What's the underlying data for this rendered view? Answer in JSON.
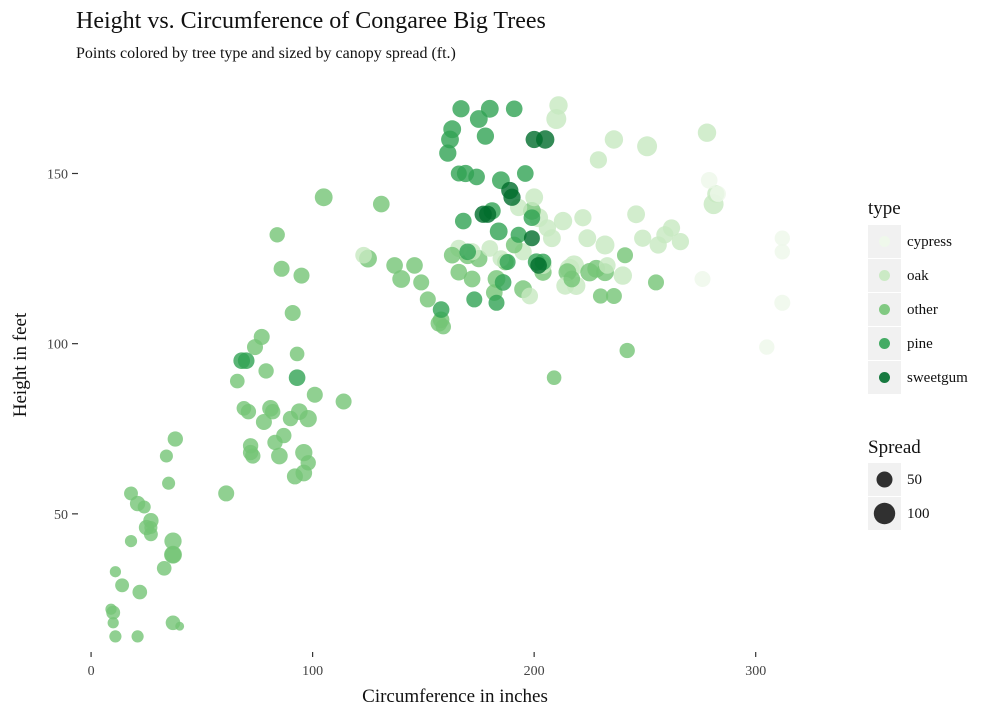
{
  "chart_data": {
    "type": "scatter",
    "title": "Height vs. Circumference of Congaree Big Trees",
    "subtitle": "Points colored by tree type and sized by canopy spread (ft.)",
    "xlabel": "Circumference in inches",
    "ylabel": "Height in feet",
    "xlim": [
      -5,
      320
    ],
    "ylim": [
      10,
      176
    ],
    "x_ticks": [
      0,
      100,
      200,
      300
    ],
    "y_ticks": [
      50,
      100,
      150
    ],
    "size_range_spread": [
      0,
      130
    ],
    "colors": {
      "cypress": "#eef8ea",
      "oak": "#c7e9c0",
      "other": "#74c476",
      "pine": "#31a354",
      "sweetgum": "#006d2c"
    },
    "legend_type": {
      "title": "type",
      "entries": [
        {
          "label": "cypress",
          "type": "cypress"
        },
        {
          "label": "oak",
          "type": "oak"
        },
        {
          "label": "other",
          "type": "other"
        },
        {
          "label": "pine",
          "type": "pine"
        },
        {
          "label": "sweetgum",
          "type": "sweetgum"
        }
      ]
    },
    "legend_size": {
      "title": "Spread",
      "entries": [
        {
          "label": "50",
          "value": 50
        },
        {
          "label": "100",
          "value": 100
        }
      ]
    },
    "series": [
      {
        "name": "other",
        "points": [
          [
            9,
            22,
            20
          ],
          [
            10,
            21,
            35
          ],
          [
            10,
            18,
            20
          ],
          [
            11,
            14,
            25
          ],
          [
            11,
            33,
            20
          ],
          [
            14,
            29,
            35
          ],
          [
            18,
            42,
            25
          ],
          [
            18,
            56,
            35
          ],
          [
            21,
            53,
            45
          ],
          [
            21,
            14,
            25
          ],
          [
            22,
            27,
            40
          ],
          [
            24,
            52,
            30
          ],
          [
            25,
            46,
            45
          ],
          [
            27,
            48,
            45
          ],
          [
            27,
            44,
            35
          ],
          [
            27,
            46,
            30
          ],
          [
            33,
            34,
            40
          ],
          [
            34,
            67,
            30
          ],
          [
            35,
            59,
            30
          ],
          [
            37,
            42,
            60
          ],
          [
            37,
            38,
            65
          ],
          [
            37,
            38,
            55
          ],
          [
            38,
            72,
            45
          ],
          [
            37,
            18,
            40
          ],
          [
            40,
            17,
            10
          ],
          [
            61,
            56,
            50
          ],
          [
            66,
            89,
            40
          ],
          [
            69,
            81,
            40
          ],
          [
            71,
            80,
            45
          ],
          [
            72,
            70,
            45
          ],
          [
            72,
            68,
            45
          ],
          [
            73,
            67,
            45
          ],
          [
            74,
            99,
            50
          ],
          [
            77,
            102,
            50
          ],
          [
            79,
            92,
            45
          ],
          [
            78,
            77,
            50
          ],
          [
            81,
            81,
            55
          ],
          [
            82,
            80,
            45
          ],
          [
            83,
            71,
            45
          ],
          [
            84,
            132,
            45
          ],
          [
            85,
            67,
            55
          ],
          [
            86,
            122,
            50
          ],
          [
            87,
            73,
            45
          ],
          [
            90,
            78,
            45
          ],
          [
            91,
            109,
            50
          ],
          [
            92,
            61,
            50
          ],
          [
            93,
            97,
            40
          ],
          [
            94,
            80,
            55
          ],
          [
            95,
            120,
            50
          ],
          [
            96,
            68,
            60
          ],
          [
            96,
            62,
            55
          ],
          [
            98,
            65,
            45
          ],
          [
            98,
            78,
            60
          ],
          [
            101,
            85,
            50
          ],
          [
            105,
            143,
            65
          ],
          [
            114,
            83,
            50
          ],
          [
            125,
            125,
            65
          ],
          [
            131,
            141,
            55
          ],
          [
            137,
            123,
            55
          ],
          [
            140,
            119,
            65
          ],
          [
            146,
            123,
            55
          ],
          [
            149,
            118,
            50
          ],
          [
            152,
            113,
            50
          ],
          [
            157,
            106,
            55
          ],
          [
            158,
            107,
            55
          ],
          [
            159,
            105,
            45
          ],
          [
            163,
            126,
            55
          ],
          [
            166,
            121,
            55
          ],
          [
            170,
            126,
            65
          ],
          [
            172,
            119,
            55
          ],
          [
            175,
            125,
            60
          ],
          [
            182,
            115,
            55
          ],
          [
            183,
            119,
            65
          ],
          [
            187,
            124,
            55
          ],
          [
            191,
            129,
            55
          ],
          [
            195,
            116,
            65
          ],
          [
            199,
            139,
            65
          ],
          [
            204,
            121,
            60
          ],
          [
            209,
            90,
            40
          ],
          [
            215,
            121,
            65
          ],
          [
            217,
            119,
            55
          ],
          [
            225,
            121,
            70
          ],
          [
            228,
            122,
            65
          ],
          [
            230,
            114,
            45
          ],
          [
            232,
            121,
            65
          ],
          [
            236,
            114,
            50
          ],
          [
            241,
            126,
            50
          ],
          [
            242,
            98,
            45
          ],
          [
            255,
            118,
            50
          ]
        ]
      },
      {
        "name": "oak",
        "points": [
          [
            123,
            126,
            55
          ],
          [
            166,
            128,
            60
          ],
          [
            172,
            127,
            60
          ],
          [
            180,
            128,
            55
          ],
          [
            185,
            125,
            55
          ],
          [
            193,
            140,
            60
          ],
          [
            195,
            127,
            60
          ],
          [
            198,
            114,
            55
          ],
          [
            200,
            143,
            65
          ],
          [
            202,
            137,
            75
          ],
          [
            204,
            123,
            60
          ],
          [
            206,
            134,
            60
          ],
          [
            208,
            131,
            65
          ],
          [
            210,
            166,
            85
          ],
          [
            211,
            170,
            70
          ],
          [
            213,
            136,
            70
          ],
          [
            214,
            117,
            65
          ],
          [
            216,
            122,
            85
          ],
          [
            218,
            123,
            85
          ],
          [
            219,
            117,
            70
          ],
          [
            222,
            137,
            60
          ],
          [
            224,
            131,
            65
          ],
          [
            229,
            154,
            60
          ],
          [
            232,
            129,
            75
          ],
          [
            233,
            123,
            55
          ],
          [
            236,
            160,
            70
          ],
          [
            240,
            120,
            70
          ],
          [
            246,
            138,
            65
          ],
          [
            249,
            131,
            60
          ],
          [
            251,
            158,
            85
          ],
          [
            256,
            129,
            60
          ],
          [
            259,
            132,
            60
          ],
          [
            262,
            134,
            60
          ],
          [
            266,
            130,
            60
          ],
          [
            278,
            162,
            70
          ],
          [
            281,
            141,
            85
          ],
          [
            282,
            144,
            60
          ]
        ]
      },
      {
        "name": "cypress",
        "points": [
          [
            276,
            119,
            50
          ],
          [
            279,
            148,
            55
          ],
          [
            283,
            144,
            50
          ],
          [
            305,
            99,
            45
          ],
          [
            312,
            131,
            45
          ],
          [
            312,
            127,
            45
          ],
          [
            312,
            112,
            50
          ]
        ]
      },
      {
        "name": "pine",
        "points": [
          [
            68,
            95,
            55
          ],
          [
            70,
            95,
            55
          ],
          [
            93,
            90,
            55
          ],
          [
            158,
            110,
            55
          ],
          [
            161,
            156,
            60
          ],
          [
            162,
            160,
            65
          ],
          [
            163,
            163,
            65
          ],
          [
            166,
            150,
            50
          ],
          [
            167,
            169,
            60
          ],
          [
            168,
            136,
            55
          ],
          [
            169,
            150,
            60
          ],
          [
            170,
            127,
            55
          ],
          [
            173,
            113,
            50
          ],
          [
            174,
            149,
            55
          ],
          [
            175,
            166,
            65
          ],
          [
            178,
            161,
            60
          ],
          [
            180,
            169,
            65
          ],
          [
            181,
            139,
            60
          ],
          [
            183,
            112,
            50
          ],
          [
            184,
            133,
            65
          ],
          [
            185,
            148,
            65
          ],
          [
            186,
            118,
            55
          ],
          [
            188,
            124,
            50
          ],
          [
            191,
            169,
            55
          ],
          [
            193,
            132,
            50
          ],
          [
            196,
            150,
            55
          ],
          [
            199,
            137,
            55
          ],
          [
            201,
            124,
            60
          ],
          [
            204,
            124,
            55
          ]
        ]
      },
      {
        "name": "sweetgum",
        "points": [
          [
            177,
            138,
            60
          ],
          [
            179,
            138,
            60
          ],
          [
            189,
            145,
            60
          ],
          [
            190,
            143,
            60
          ],
          [
            199,
            131,
            50
          ],
          [
            200,
            160,
            60
          ],
          [
            202,
            123,
            55
          ],
          [
            205,
            160,
            70
          ]
        ]
      }
    ]
  }
}
